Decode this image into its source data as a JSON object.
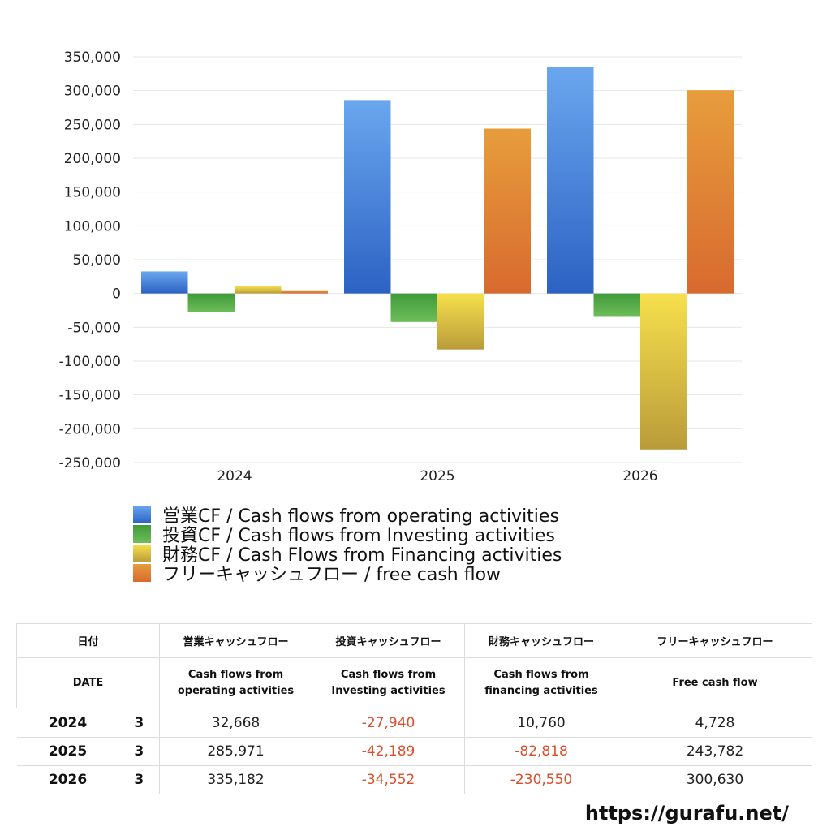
{
  "chart_data": {
    "type": "bar",
    "categories": [
      "2024",
      "2025",
      "2026"
    ],
    "series": [
      {
        "name": "営業CF / Cash flows from operating activities",
        "values": [
          32668,
          285971,
          335182
        ],
        "color_top": "#6aa7ef",
        "color_bottom": "#2c62c3"
      },
      {
        "name": "投資CF / Cash flows from Investing activities",
        "values": [
          -27940,
          -42189,
          -34552
        ],
        "color_top": "#3f9a3a",
        "color_bottom": "#6fbd5a"
      },
      {
        "name": "財務CF / Cash Flows from Financing activities",
        "values": [
          10760,
          -82818,
          -230550
        ],
        "color_top": "#f7e04d",
        "color_bottom": "#b99c3a"
      },
      {
        "name": "フリーキャッシュフロー / free cash flow",
        "values": [
          4728,
          243782,
          300630
        ],
        "color_top": "#e79d3c",
        "color_bottom": "#d86a2f"
      }
    ],
    "ylim": [
      -250000,
      350000
    ],
    "yticks": [
      "350,000",
      "300,000",
      "250,000",
      "200,000",
      "150,000",
      "100,000",
      "50,000",
      "0",
      "-50,000",
      "-100,000",
      "-150,000",
      "-200,000",
      "-250,000"
    ],
    "grid": true,
    "legend_position": "bottom"
  },
  "table": {
    "header_jp": [
      "日付",
      "営業キャッシュフロー",
      "投資キャッシュフロー",
      "財務キャッシュフロー",
      "フリーキャッシュフロー"
    ],
    "header_en": [
      "DATE",
      "Cash flows from operating activities",
      "Cash flows from Investing activities",
      "Cash flows from financing activities",
      "Free cash flow"
    ],
    "header_en_lines": [
      [
        "DATE"
      ],
      [
        "Cash flows from",
        "operating activities"
      ],
      [
        "Cash flows from",
        "Investing activities"
      ],
      [
        "Cash flows from",
        "financing activities"
      ],
      [
        "Free cash flow"
      ]
    ],
    "rows": [
      {
        "year": "2024",
        "month": "3",
        "values": [
          "32,668",
          "-27,940",
          "10,760",
          "4,728"
        ]
      },
      {
        "year": "2025",
        "month": "3",
        "values": [
          "285,971",
          "-42,189",
          "-82,818",
          "243,782"
        ]
      },
      {
        "year": "2026",
        "month": "3",
        "values": [
          "335,182",
          "-34,552",
          "-230,550",
          "300,630"
        ]
      }
    ],
    "negative_color": "#d94f2b"
  },
  "footer": {
    "url": "https://gurafu.net/"
  }
}
